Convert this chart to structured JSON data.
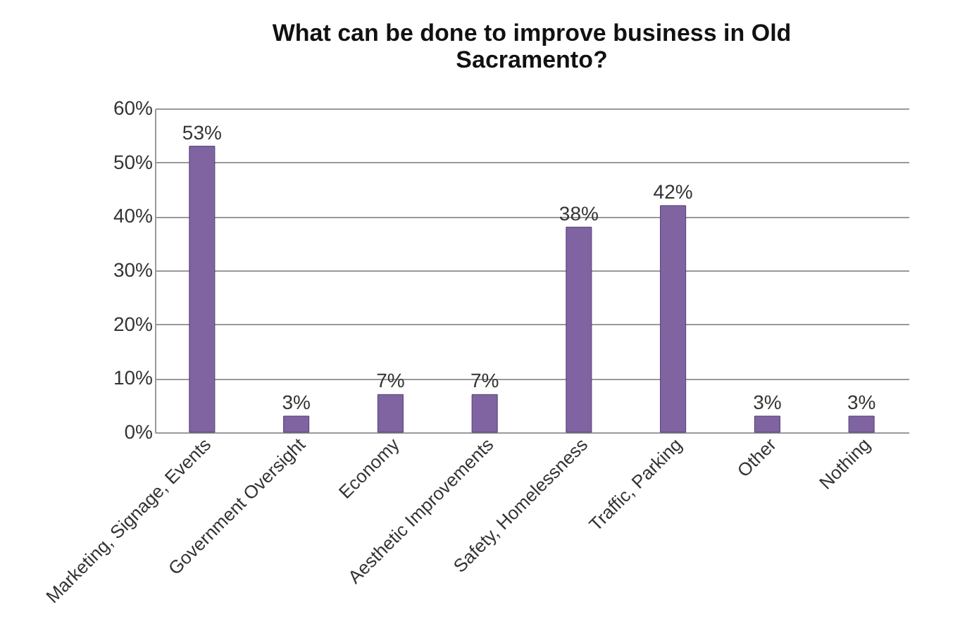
{
  "chart_data": {
    "type": "bar",
    "title": "What can be done to improve business in Old Sacramento?",
    "categories": [
      "Marketing, Signage, Events",
      "Government Oversight",
      "Economy",
      "Aesthetic Improvements",
      "Safety, Homelessness",
      "Traffic, Parking",
      "Other",
      "Nothing"
    ],
    "values": [
      53,
      3,
      7,
      7,
      38,
      42,
      3,
      3
    ],
    "value_labels": [
      "53%",
      "3%",
      "7%",
      "7%",
      "38%",
      "42%",
      "3%",
      "3%"
    ],
    "color": "#8064a2",
    "ylim": [
      0,
      60
    ],
    "yticks": [
      {
        "value": 0,
        "label": "0%"
      },
      {
        "value": 10,
        "label": "10%"
      },
      {
        "value": 20,
        "label": "20%"
      },
      {
        "value": 30,
        "label": "30%"
      },
      {
        "value": 40,
        "label": "40%"
      },
      {
        "value": 50,
        "label": "50%"
      },
      {
        "value": 60,
        "label": "60%"
      }
    ],
    "grid": "y"
  }
}
